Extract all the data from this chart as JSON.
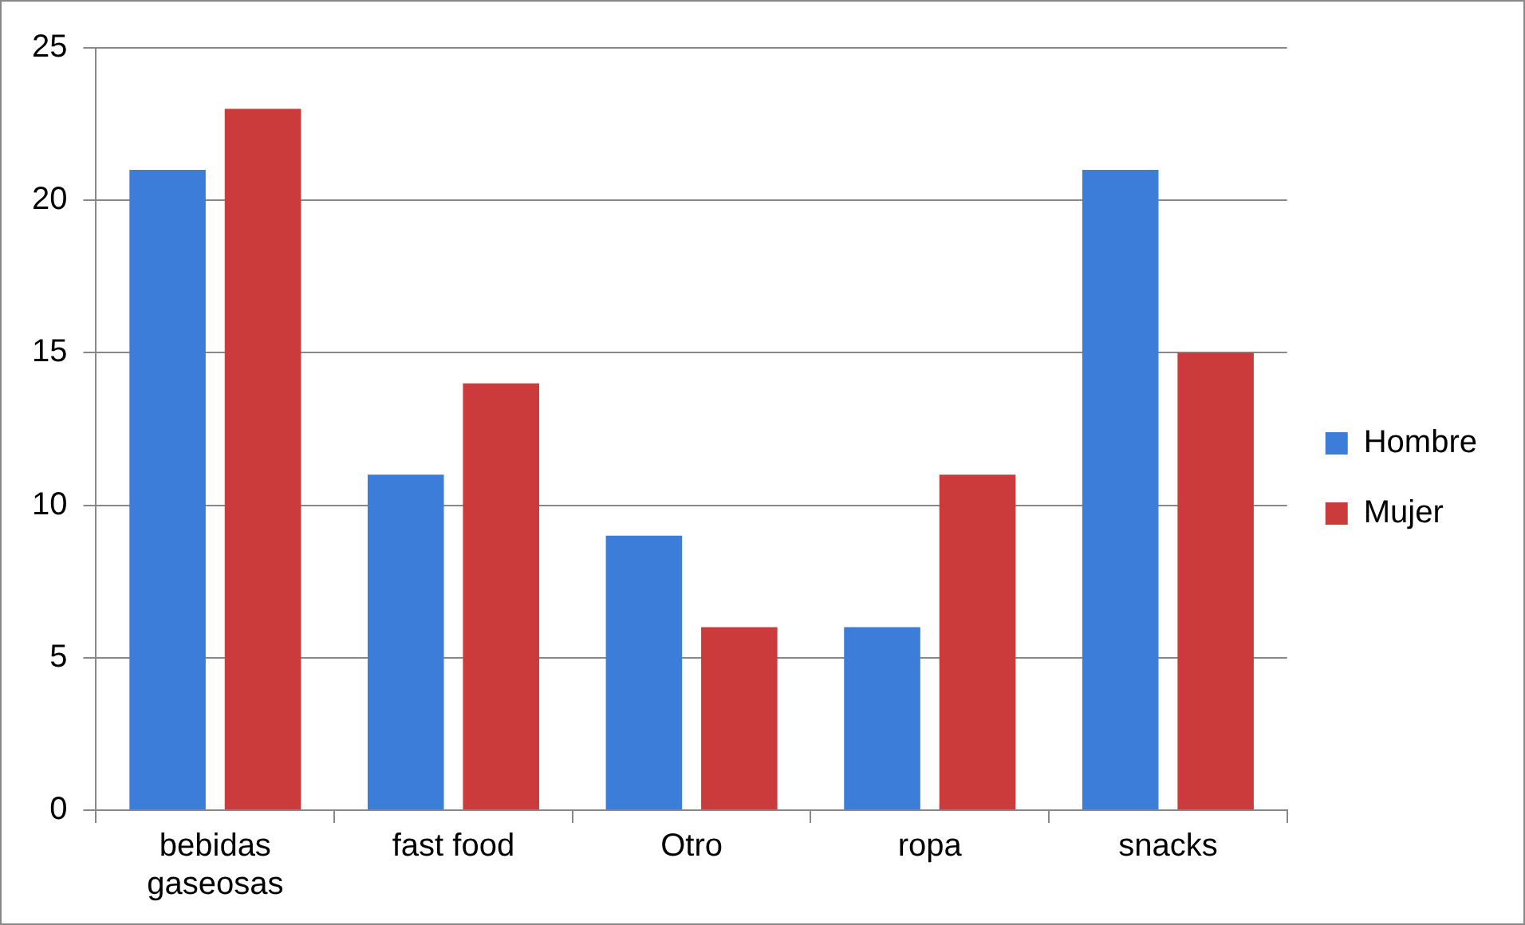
{
  "chart_data": {
    "type": "bar",
    "categories": [
      "bebidas gaseosas",
      "fast food",
      "Otro",
      "ropa",
      "snacks"
    ],
    "series": [
      {
        "name": "Hombre",
        "color": "#3b7dd8",
        "values": [
          21,
          11,
          9,
          6,
          21
        ]
      },
      {
        "name": "Mujer",
        "color": "#cc3b3b",
        "values": [
          23,
          14,
          6,
          11,
          15
        ]
      }
    ],
    "ylim": [
      0,
      25
    ],
    "yticks": [
      0,
      5,
      10,
      15,
      20,
      25
    ],
    "grid": "y",
    "legend": "right"
  }
}
